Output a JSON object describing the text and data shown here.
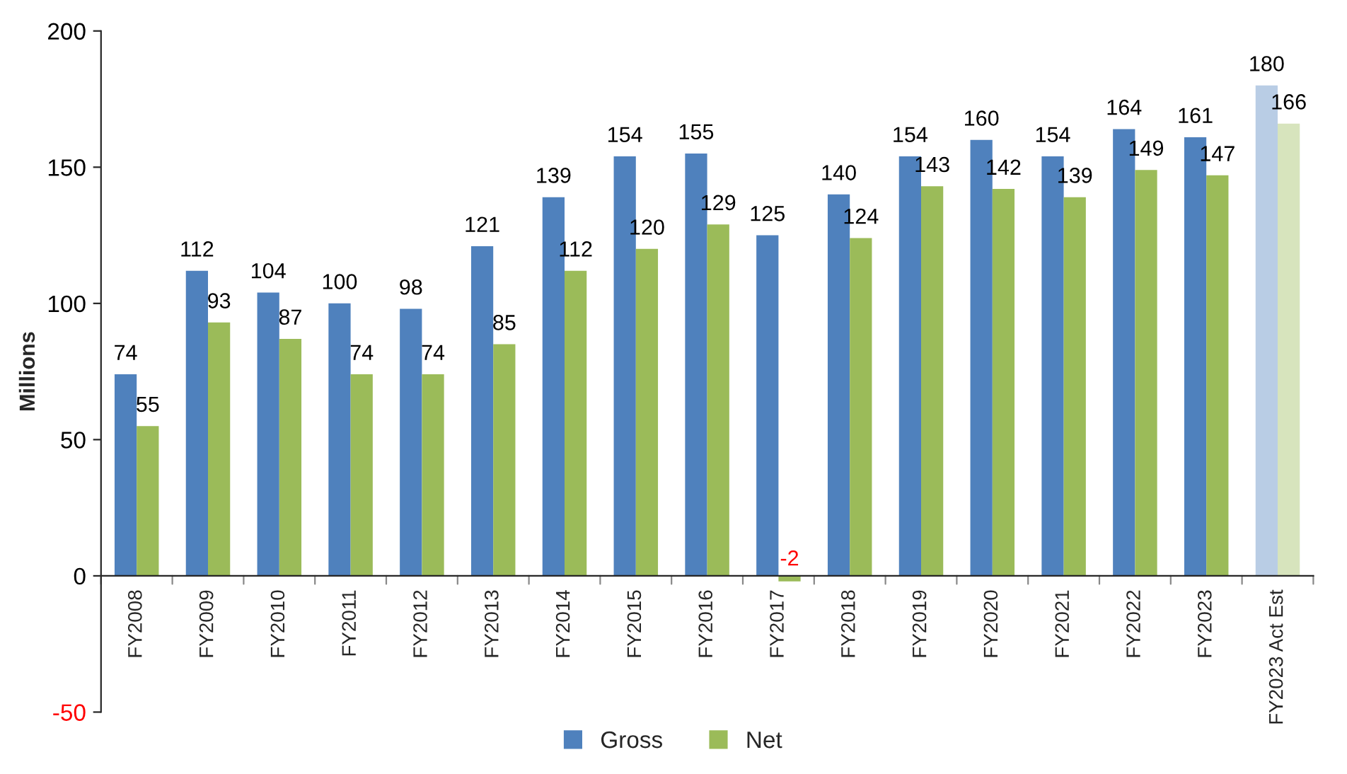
{
  "chart_data": {
    "type": "bar",
    "ylabel": "Millions",
    "categories": [
      "FY2008",
      "FY2009",
      "FY2010",
      "FY2011",
      "FY2012",
      "FY2013",
      "FY2014",
      "FY2015",
      "FY2016",
      "FY2017",
      "FY2018",
      "FY2019",
      "FY2020",
      "FY2021",
      "FY2022",
      "FY2023",
      "FY2023 Act Est"
    ],
    "series": [
      {
        "name": "Gross",
        "color": "#4f81bd",
        "colors": [
          "#4f81bd",
          "#4f81bd",
          "#4f81bd",
          "#4f81bd",
          "#4f81bd",
          "#4f81bd",
          "#4f81bd",
          "#4f81bd",
          "#4f81bd",
          "#4f81bd",
          "#4f81bd",
          "#4f81bd",
          "#4f81bd",
          "#4f81bd",
          "#4f81bd",
          "#4f81bd",
          "#b9cde5"
        ],
        "values": [
          74,
          112,
          104,
          100,
          98,
          121,
          139,
          154,
          155,
          125,
          140,
          154,
          160,
          154,
          164,
          161,
          180
        ]
      },
      {
        "name": "Net",
        "color": "#9bbb59",
        "colors": [
          "#9bbb59",
          "#9bbb59",
          "#9bbb59",
          "#9bbb59",
          "#9bbb59",
          "#9bbb59",
          "#9bbb59",
          "#9bbb59",
          "#9bbb59",
          "#9bbb59",
          "#9bbb59",
          "#9bbb59",
          "#9bbb59",
          "#9bbb59",
          "#9bbb59",
          "#9bbb59",
          "#d7e4bd"
        ],
        "values": [
          55,
          93,
          87,
          74,
          74,
          85,
          112,
          120,
          129,
          -2,
          124,
          143,
          142,
          139,
          149,
          147,
          166
        ]
      }
    ],
    "ylim": [
      -50,
      200
    ],
    "yticks": [
      -50,
      0,
      50,
      100,
      150,
      200
    ],
    "data_labels": true,
    "legend": "bottom",
    "grid": false
  }
}
